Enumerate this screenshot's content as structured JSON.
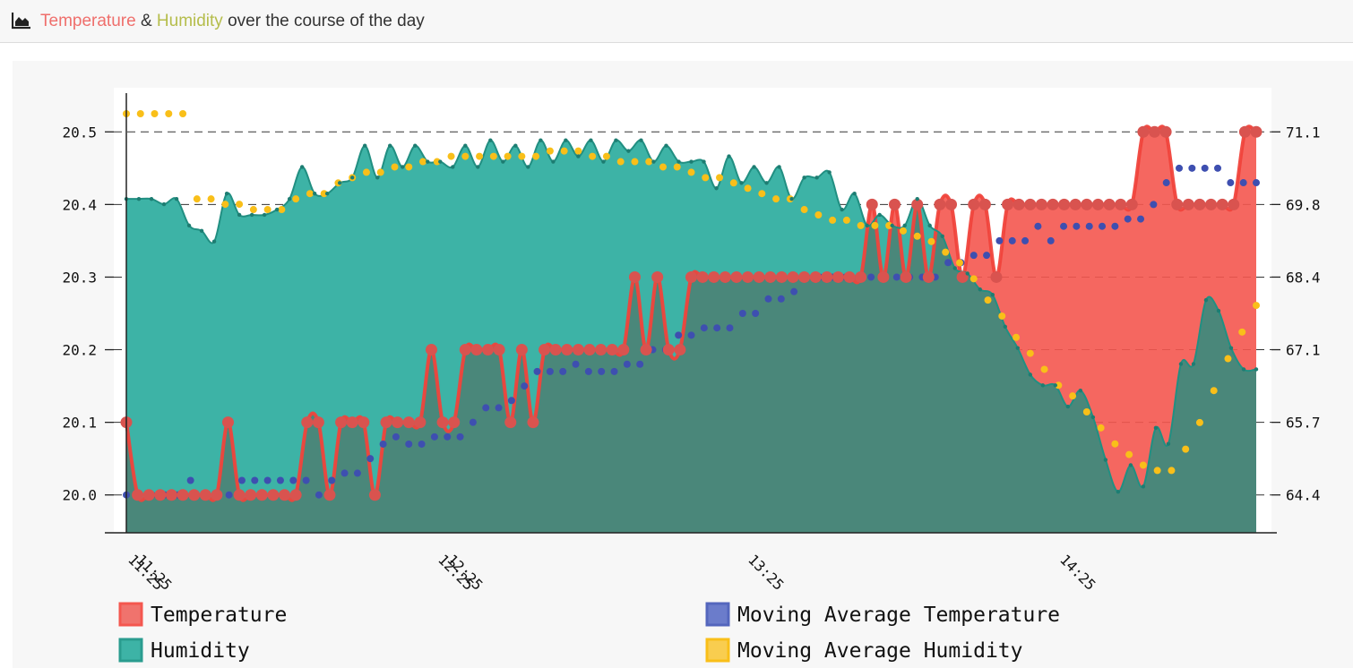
{
  "header": {
    "icon": "area-chart-icon",
    "title_part1": "Temperature",
    "title_part2": " & ",
    "title_part3": "Humidity",
    "title_part4": " over the course of the day"
  },
  "colors": {
    "temperature": "#f4574f",
    "humidity": "#3db3a6",
    "overlap": "#4a877a",
    "moving_avg_temperature": "#3e4fb0",
    "moving_avg_humidity": "#f9bf19"
  },
  "chart_data": {
    "type": "area",
    "x_tick_labels": [
      "11:25",
      "11:25",
      "12:25",
      "12:25",
      "13:25",
      "14:25"
    ],
    "y_left_ticks": [
      "20.0",
      "20.1",
      "20.2",
      "20.3",
      "20.4",
      "20.5"
    ],
    "y_right_ticks": [
      "64.4",
      "65.7",
      "67.1",
      "68.4",
      "69.8",
      "71.1"
    ],
    "y_left_range": [
      19.975,
      20.525
    ],
    "y_right_range": [
      64.0,
      71.5
    ],
    "grid": "horizontal dashed",
    "legend_position": "bottom",
    "series": [
      {
        "name": "Temperature",
        "axis": "left",
        "values": [
          20.1,
          20.0,
          20.0,
          20.0,
          20.0,
          20.0,
          20.0,
          20.0,
          20.0,
          20.1,
          20.0,
          20.0,
          20.0,
          20.0,
          20.0,
          20.0,
          20.1,
          20.1,
          20.0,
          20.1,
          20.1,
          20.1,
          20.0,
          20.1,
          20.1,
          20.1,
          20.1,
          20.2,
          20.1,
          20.1,
          20.2,
          20.2,
          20.2,
          20.2,
          20.1,
          20.2,
          20.1,
          20.2,
          20.2,
          20.2,
          20.2,
          20.2,
          20.2,
          20.2,
          20.2,
          20.3,
          20.2,
          20.3,
          20.2,
          20.2,
          20.3,
          20.3,
          20.3,
          20.3,
          20.3,
          20.3,
          20.3,
          20.3,
          20.3,
          20.3,
          20.3,
          20.3,
          20.3,
          20.3,
          20.3,
          20.3,
          20.4,
          20.3,
          20.4,
          20.3,
          20.4,
          20.3,
          20.4,
          20.4,
          20.3,
          20.4,
          20.4,
          20.3,
          20.4,
          20.4,
          20.4,
          20.4,
          20.4,
          20.4,
          20.4,
          20.4,
          20.4,
          20.4,
          20.4,
          20.4,
          20.5,
          20.5,
          20.5,
          20.4,
          20.4,
          20.4,
          20.4,
          20.4,
          20.4,
          20.5,
          20.5
        ]
      },
      {
        "name": "Humidity",
        "axis": "right",
        "values": [
          69.9,
          69.9,
          69.9,
          69.8,
          69.9,
          69.4,
          69.3,
          69.1,
          70.0,
          69.6,
          69.6,
          69.6,
          69.7,
          69.9,
          70.5,
          70.0,
          70.0,
          70.2,
          70.3,
          70.9,
          70.3,
          70.9,
          70.5,
          70.9,
          70.6,
          70.6,
          70.5,
          70.9,
          70.5,
          71.0,
          70.6,
          70.9,
          70.5,
          71.0,
          70.6,
          71.0,
          70.7,
          71.0,
          70.6,
          71.0,
          70.8,
          71.0,
          70.6,
          70.9,
          70.6,
          70.6,
          70.6,
          70.1,
          70.7,
          70.2,
          70.5,
          70.2,
          70.5,
          69.9,
          70.3,
          70.3,
          70.4,
          69.7,
          70.0,
          69.4,
          69.6,
          69.4,
          69.4,
          69.9,
          69.4,
          69.2,
          68.6,
          68.5,
          68.2,
          68.1,
          67.5,
          67.1,
          66.6,
          66.4,
          66.4,
          66.0,
          66.3,
          65.8,
          65.0,
          64.4,
          64.9,
          64.5,
          65.6,
          65.3,
          66.8,
          66.8,
          68.0,
          67.8,
          67.1,
          66.7,
          66.7
        ]
      },
      {
        "name": "Moving Average Temperature",
        "axis": "left",
        "values": [
          20.0,
          20.0,
          20.0,
          20.0,
          20.0,
          20.02,
          20.0,
          20.0,
          20.0,
          20.02,
          20.02,
          20.02,
          20.02,
          20.02,
          20.02,
          20.0,
          20.02,
          20.03,
          20.03,
          20.05,
          20.07,
          20.08,
          20.07,
          20.07,
          20.08,
          20.08,
          20.08,
          20.1,
          20.12,
          20.12,
          20.13,
          20.15,
          20.17,
          20.17,
          20.17,
          20.18,
          20.17,
          20.17,
          20.17,
          20.18,
          20.18,
          20.2,
          20.2,
          20.22,
          20.22,
          20.23,
          20.23,
          20.23,
          20.25,
          20.25,
          20.27,
          20.27,
          20.28,
          20.3,
          20.3,
          20.3,
          20.3,
          20.3,
          20.3,
          20.3,
          20.3,
          20.3,
          20.3,
          20.3,
          20.32,
          20.32,
          20.33,
          20.33,
          20.35,
          20.35,
          20.35,
          20.37,
          20.35,
          20.37,
          20.37,
          20.37,
          20.37,
          20.37,
          20.38,
          20.38,
          20.4,
          20.43,
          20.45,
          20.45,
          20.45,
          20.45,
          20.43,
          20.43,
          20.43
        ]
      },
      {
        "name": "Moving Average Humidity",
        "axis": "right",
        "values": [
          71.5,
          71.5,
          71.5,
          71.5,
          71.5,
          69.9,
          69.9,
          69.8,
          69.8,
          69.7,
          69.7,
          69.7,
          69.9,
          70.0,
          70.0,
          70.2,
          70.3,
          70.4,
          70.4,
          70.5,
          70.5,
          70.6,
          70.6,
          70.7,
          70.7,
          70.7,
          70.7,
          70.7,
          70.7,
          70.7,
          70.8,
          70.8,
          70.8,
          70.7,
          70.7,
          70.6,
          70.6,
          70.6,
          70.5,
          70.5,
          70.4,
          70.3,
          70.3,
          70.2,
          70.1,
          70.0,
          69.9,
          69.9,
          69.7,
          69.6,
          69.5,
          69.5,
          69.4,
          69.4,
          69.4,
          69.3,
          69.2,
          69.1,
          68.9,
          68.7,
          68.4,
          68.0,
          67.7,
          67.3,
          67.0,
          66.7,
          66.4,
          66.2,
          65.9,
          65.6,
          65.3,
          65.1,
          64.9,
          64.8,
          64.8,
          65.2,
          65.7,
          66.3,
          66.9,
          67.4,
          67.9
        ]
      }
    ]
  }
}
